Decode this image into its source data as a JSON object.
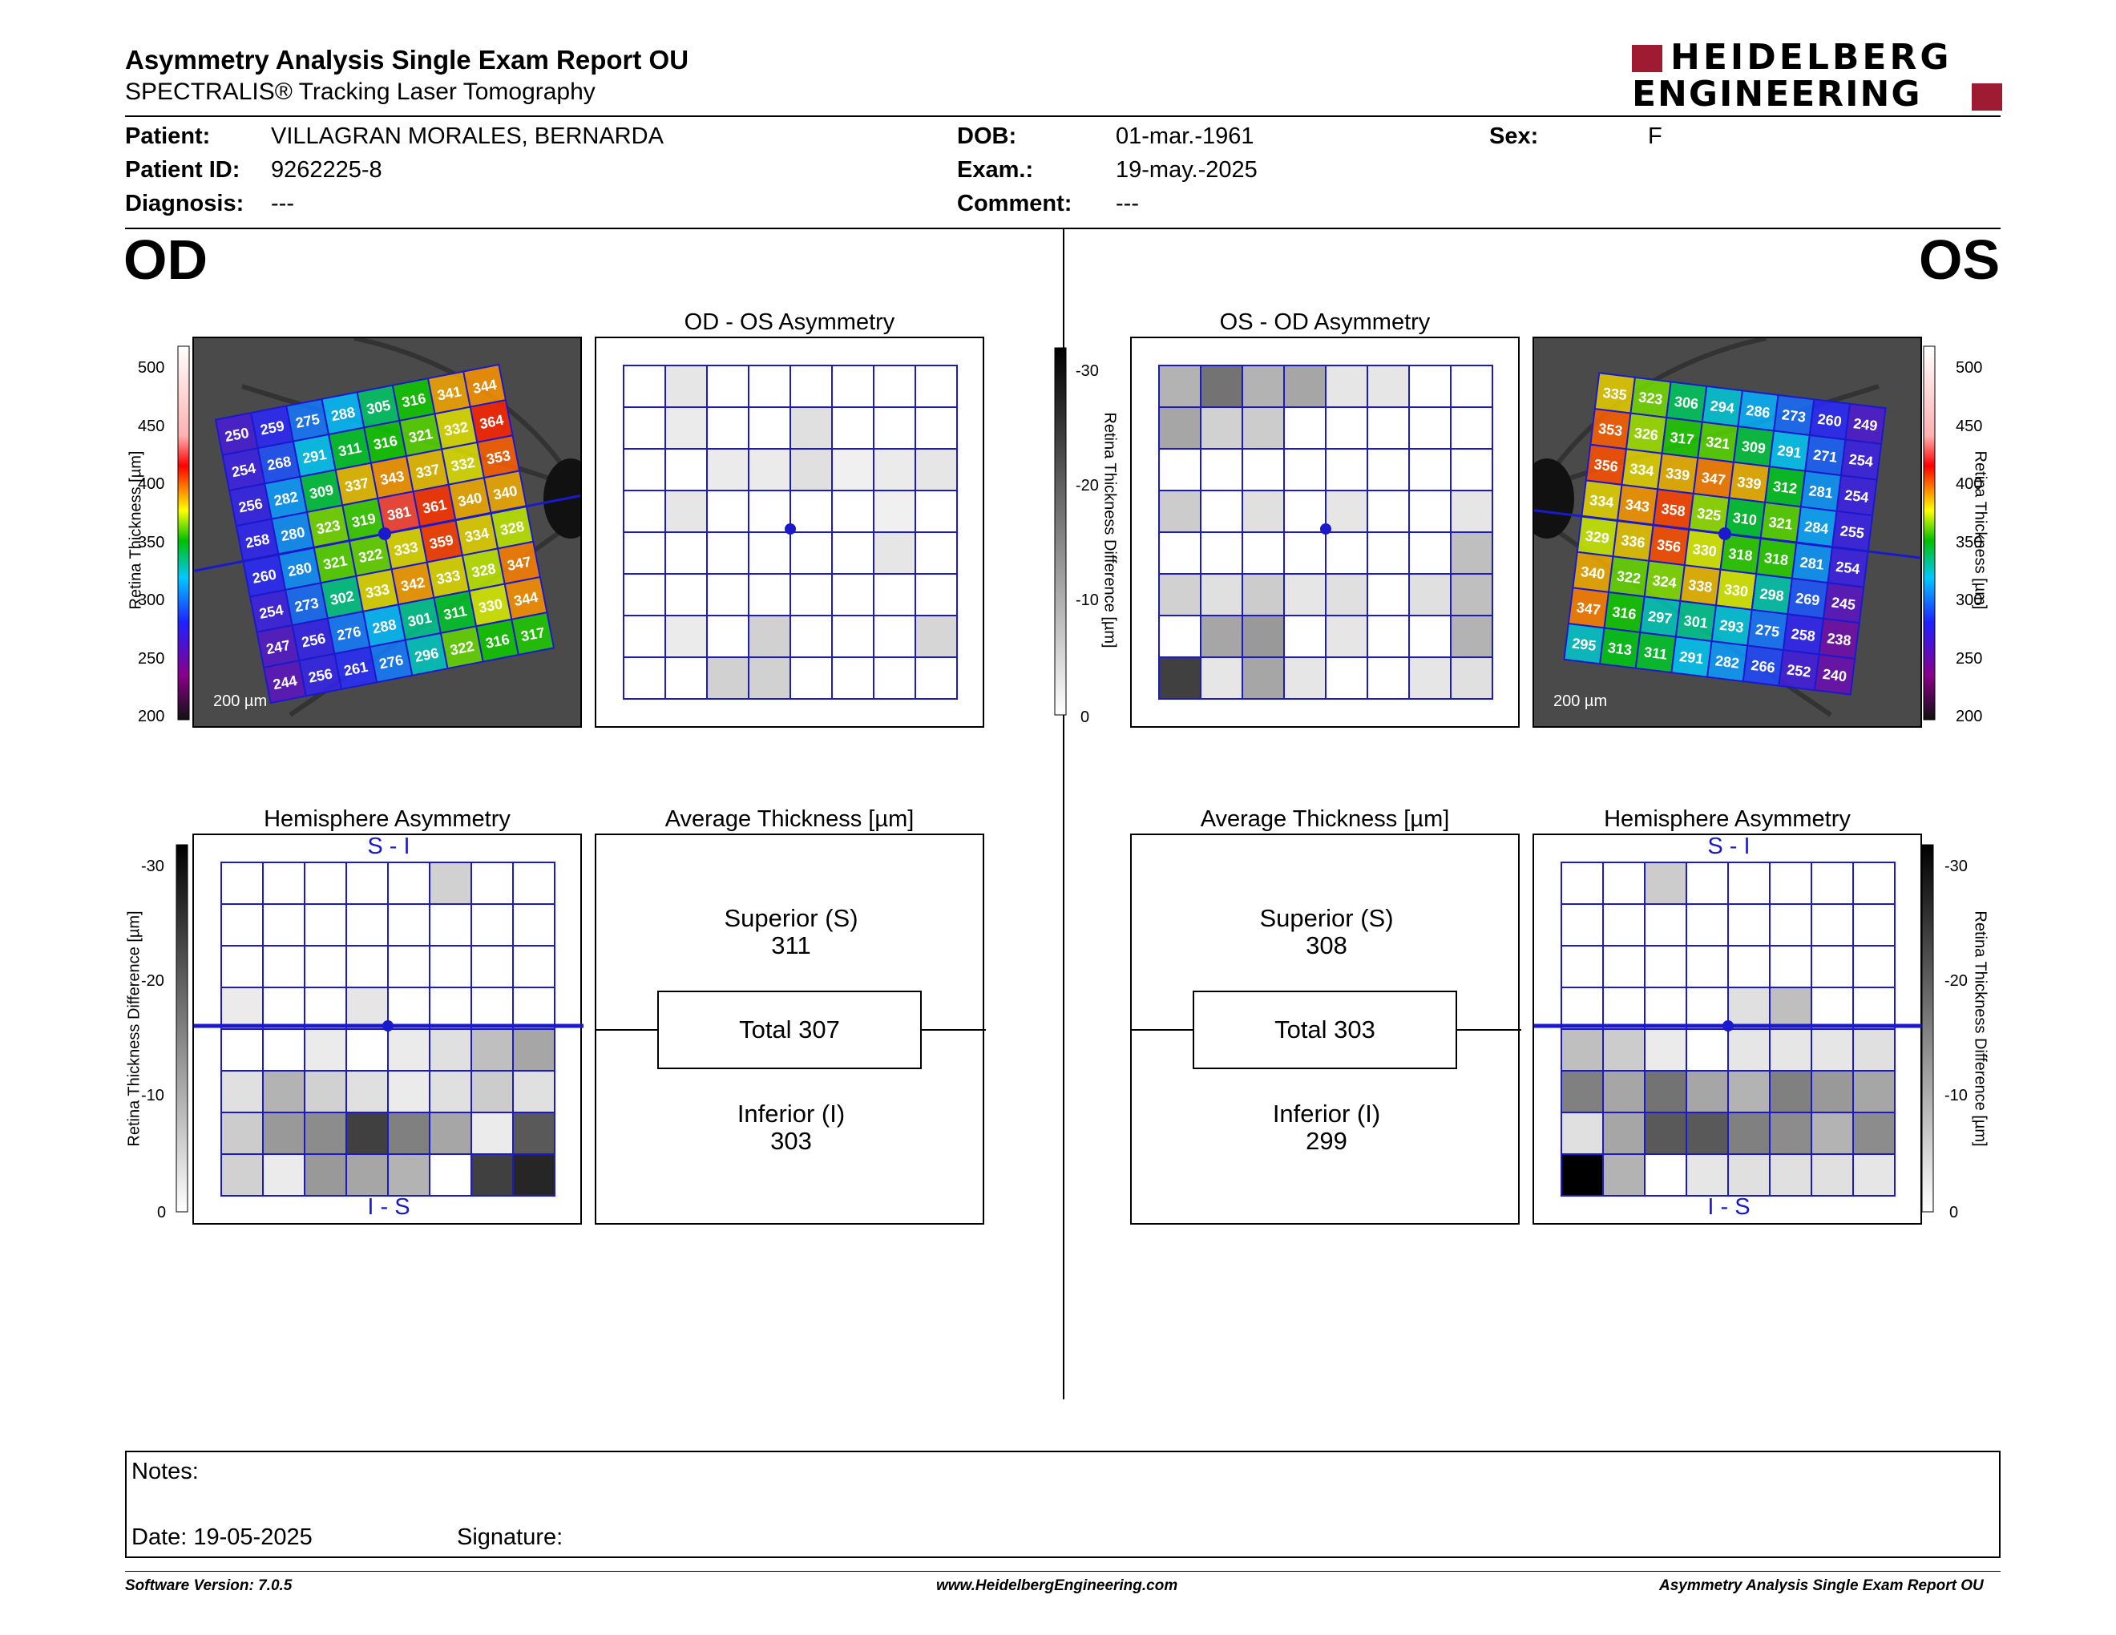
{
  "header": {
    "title": "Asymmetry Analysis Single Exam Report OU",
    "subtitle": "SPECTRALIS® Tracking Laser Tomography",
    "logo_line1": "HEIDELBERG",
    "logo_line2": "ENGINEERING"
  },
  "patient": {
    "patient_label": "Patient:",
    "patient_value": "VILLAGRAN MORALES, BERNARDA",
    "id_label": "Patient ID:",
    "id_value": "9262225-8",
    "diagnosis_label": "Diagnosis:",
    "diagnosis_value": "---",
    "dob_label": "DOB:",
    "dob_value": "01-mar.-1961",
    "exam_label": "Exam.:",
    "exam_value": "19-may.-2025",
    "comment_label": "Comment:",
    "comment_value": "---",
    "sex_label": "Sex:",
    "sex_value": "F"
  },
  "od": {
    "eye_label": "OD",
    "asym_title": "OD - OS Asymmetry",
    "hemi_title": "Hemisphere Asymmetry",
    "hemi_top": "S - I",
    "hemi_bottom": "I - S",
    "avg_title": "Average Thickness [µm]",
    "superior_label": "Superior (S)",
    "superior_value": "311",
    "total": "Total 307",
    "inferior_label": "Inferior (I)",
    "inferior_value": "303",
    "scale_bar": "200 µm",
    "thickness_grid": [
      [
        "250",
        "259",
        "275",
        "288",
        "305",
        "316",
        "341",
        "344"
      ],
      [
        "254",
        "268",
        "291",
        "311",
        "316",
        "321",
        "332",
        "364"
      ],
      [
        "256",
        "282",
        "309",
        "337",
        "343",
        "337",
        "332",
        "353"
      ],
      [
        "258",
        "280",
        "323",
        "319",
        "381",
        "361",
        "340",
        "340"
      ],
      [
        "260",
        "280",
        "321",
        "322",
        "333",
        "359",
        "334",
        "328"
      ],
      [
        "254",
        "273",
        "302",
        "333",
        "342",
        "333",
        "328",
        "347"
      ],
      [
        "247",
        "256",
        "276",
        "288",
        "301",
        "311",
        "330",
        "344"
      ],
      [
        "244",
        "256",
        "261",
        "276",
        "296",
        "322",
        "316",
        "317"
      ]
    ],
    "asym_gray": [
      [
        0,
        0.1,
        0,
        0,
        0,
        0,
        0,
        0
      ],
      [
        0,
        0.08,
        0,
        0,
        0.12,
        0,
        0,
        0
      ],
      [
        0,
        0,
        0.08,
        0.08,
        0.12,
        0.06,
        0.08,
        0.1
      ],
      [
        0,
        0.1,
        0,
        0,
        0,
        0,
        0.06,
        0
      ],
      [
        0,
        0,
        0,
        0,
        0,
        0,
        0.1,
        0
      ],
      [
        0,
        0,
        0,
        0,
        0,
        0,
        0,
        0
      ],
      [
        0,
        0.08,
        0,
        0.18,
        0,
        0,
        0,
        0.16
      ],
      [
        0,
        0,
        0.18,
        0.18,
        0,
        0,
        0,
        0
      ]
    ],
    "hemi_gray": [
      [
        0,
        0,
        0,
        0,
        0,
        0.18,
        0,
        0
      ],
      [
        0,
        0,
        0,
        0,
        0,
        0,
        0,
        0
      ],
      [
        0,
        0,
        0,
        0,
        0,
        0,
        0,
        0
      ],
      [
        0.08,
        0,
        0,
        0.1,
        0,
        0,
        0,
        0
      ],
      [
        0,
        0,
        0.08,
        0,
        0.08,
        0.12,
        0.25,
        0.35
      ],
      [
        0.12,
        0.3,
        0.18,
        0.12,
        0.08,
        0.12,
        0.2,
        0.12
      ],
      [
        0.2,
        0.4,
        0.45,
        0.75,
        0.5,
        0.35,
        0.08,
        0.65
      ],
      [
        0.18,
        0.08,
        0.4,
        0.35,
        0.3,
        0,
        0.75,
        0.85
      ]
    ]
  },
  "os": {
    "eye_label": "OS",
    "asym_title": "OS - OD Asymmetry",
    "hemi_title": "Hemisphere Asymmetry",
    "hemi_top": "S - I",
    "hemi_bottom": "I - S",
    "avg_title": "Average Thickness [µm]",
    "superior_label": "Superior (S)",
    "superior_value": "308",
    "total": "Total 303",
    "inferior_label": "Inferior (I)",
    "inferior_value": "299",
    "scale_bar": "200 µm",
    "thickness_grid": [
      [
        "335",
        "323",
        "306",
        "294",
        "286",
        "273",
        "260",
        "249"
      ],
      [
        "353",
        "326",
        "317",
        "321",
        "309",
        "291",
        "271",
        "254"
      ],
      [
        "356",
        "334",
        "339",
        "347",
        "339",
        "312",
        "281",
        "254"
      ],
      [
        "334",
        "343",
        "358",
        "325",
        "310",
        "321",
        "284",
        "255"
      ],
      [
        "329",
        "336",
        "356",
        "330",
        "318",
        "318",
        "281",
        "254"
      ],
      [
        "340",
        "322",
        "324",
        "338",
        "330",
        "298",
        "269",
        "245"
      ],
      [
        "347",
        "316",
        "297",
        "301",
        "293",
        "275",
        "258",
        "238"
      ],
      [
        "295",
        "313",
        "311",
        "291",
        "282",
        "266",
        "252",
        "240"
      ]
    ],
    "asym_gray": [
      [
        0.3,
        0.55,
        0.3,
        0.35,
        0.1,
        0.1,
        0,
        0
      ],
      [
        0.35,
        0.18,
        0.2,
        0,
        0,
        0,
        0,
        0
      ],
      [
        0,
        0,
        0,
        0,
        0,
        0,
        0,
        0
      ],
      [
        0.2,
        0,
        0.12,
        0,
        0.1,
        0,
        0,
        0.1
      ],
      [
        0,
        0,
        0,
        0,
        0,
        0,
        0,
        0.25
      ],
      [
        0.18,
        0.12,
        0.2,
        0.1,
        0.12,
        0,
        0.12,
        0.25
      ],
      [
        0,
        0.35,
        0.4,
        0,
        0.1,
        0,
        0,
        0.3
      ],
      [
        0.75,
        0.1,
        0.35,
        0.1,
        0,
        0,
        0.1,
        0.12
      ]
    ],
    "hemi_gray": [
      [
        0,
        0,
        0.2,
        0,
        0,
        0,
        0,
        0
      ],
      [
        0,
        0,
        0,
        0,
        0,
        0,
        0,
        0
      ],
      [
        0,
        0,
        0,
        0,
        0,
        0,
        0,
        0
      ],
      [
        0,
        0,
        0,
        0,
        0.12,
        0.25,
        0,
        0
      ],
      [
        0.25,
        0.2,
        0.08,
        0,
        0.1,
        0.1,
        0.1,
        0.12
      ],
      [
        0.5,
        0.35,
        0.55,
        0.35,
        0.3,
        0.5,
        0.4,
        0.35
      ],
      [
        0.12,
        0.35,
        0.65,
        0.65,
        0.5,
        0.45,
        0.3,
        0.45
      ],
      [
        1,
        0.3,
        0,
        0.1,
        0.12,
        0.12,
        0.12,
        0.1
      ]
    ]
  },
  "scales": {
    "thickness_label": "Retina Thickness [µm]",
    "thickness_ticks": [
      "500",
      "450",
      "400",
      "350",
      "300",
      "250",
      "200"
    ],
    "diff_label": "Retina Thickness Difference [µm]",
    "diff_ticks": [
      "-30",
      "-20",
      "-10",
      "0"
    ]
  },
  "notes": {
    "notes_label": "Notes:",
    "date_label": "Date: 19-05-2025",
    "signature_label": "Signature:"
  },
  "footer": {
    "left": "Software Version: 7.0.5",
    "center": "www.HeidelbergEngineering.com",
    "right": "Asymmetry Analysis Single Exam Report OU"
  },
  "colors": {
    "grid_blue": "#1a1acc",
    "logo_red": "#9e1b32",
    "fundus_bg": "#4a4a4a"
  }
}
